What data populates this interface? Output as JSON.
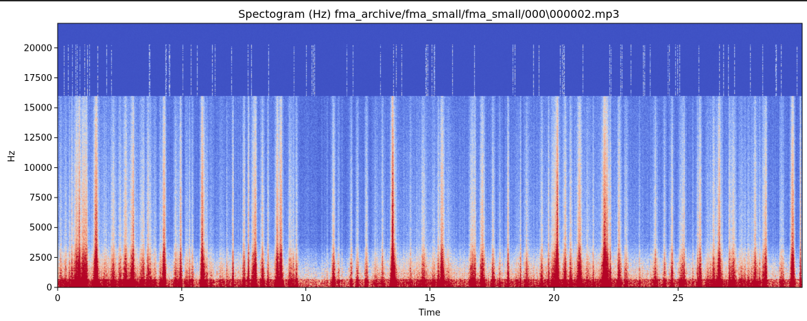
{
  "chart_data": {
    "type": "heatmap",
    "title": "Spectogram (Hz) fma_archive/fma_small/fma_small/000\\000002.mp3",
    "xlabel": "Time",
    "ylabel": "Hz",
    "xlim": [
      0,
      30
    ],
    "ylim": [
      0,
      22050
    ],
    "x_ticks": [
      0,
      5,
      10,
      15,
      20,
      25
    ],
    "x_tick_labels": [
      "0",
      "5",
      "10",
      "15",
      "20",
      "25"
    ],
    "y_ticks": [
      0,
      2500,
      5000,
      7500,
      10000,
      12500,
      15000,
      17500,
      20000
    ],
    "y_tick_labels": [
      "0",
      "2500",
      "5000",
      "7500",
      "10000",
      "12500",
      "15000",
      "17500",
      "20000"
    ],
    "colormap": "coolwarm",
    "colors": {
      "low": "#3b4cc0",
      "mid": "#dddddd",
      "high": "#b40426"
    },
    "grid": false
  }
}
